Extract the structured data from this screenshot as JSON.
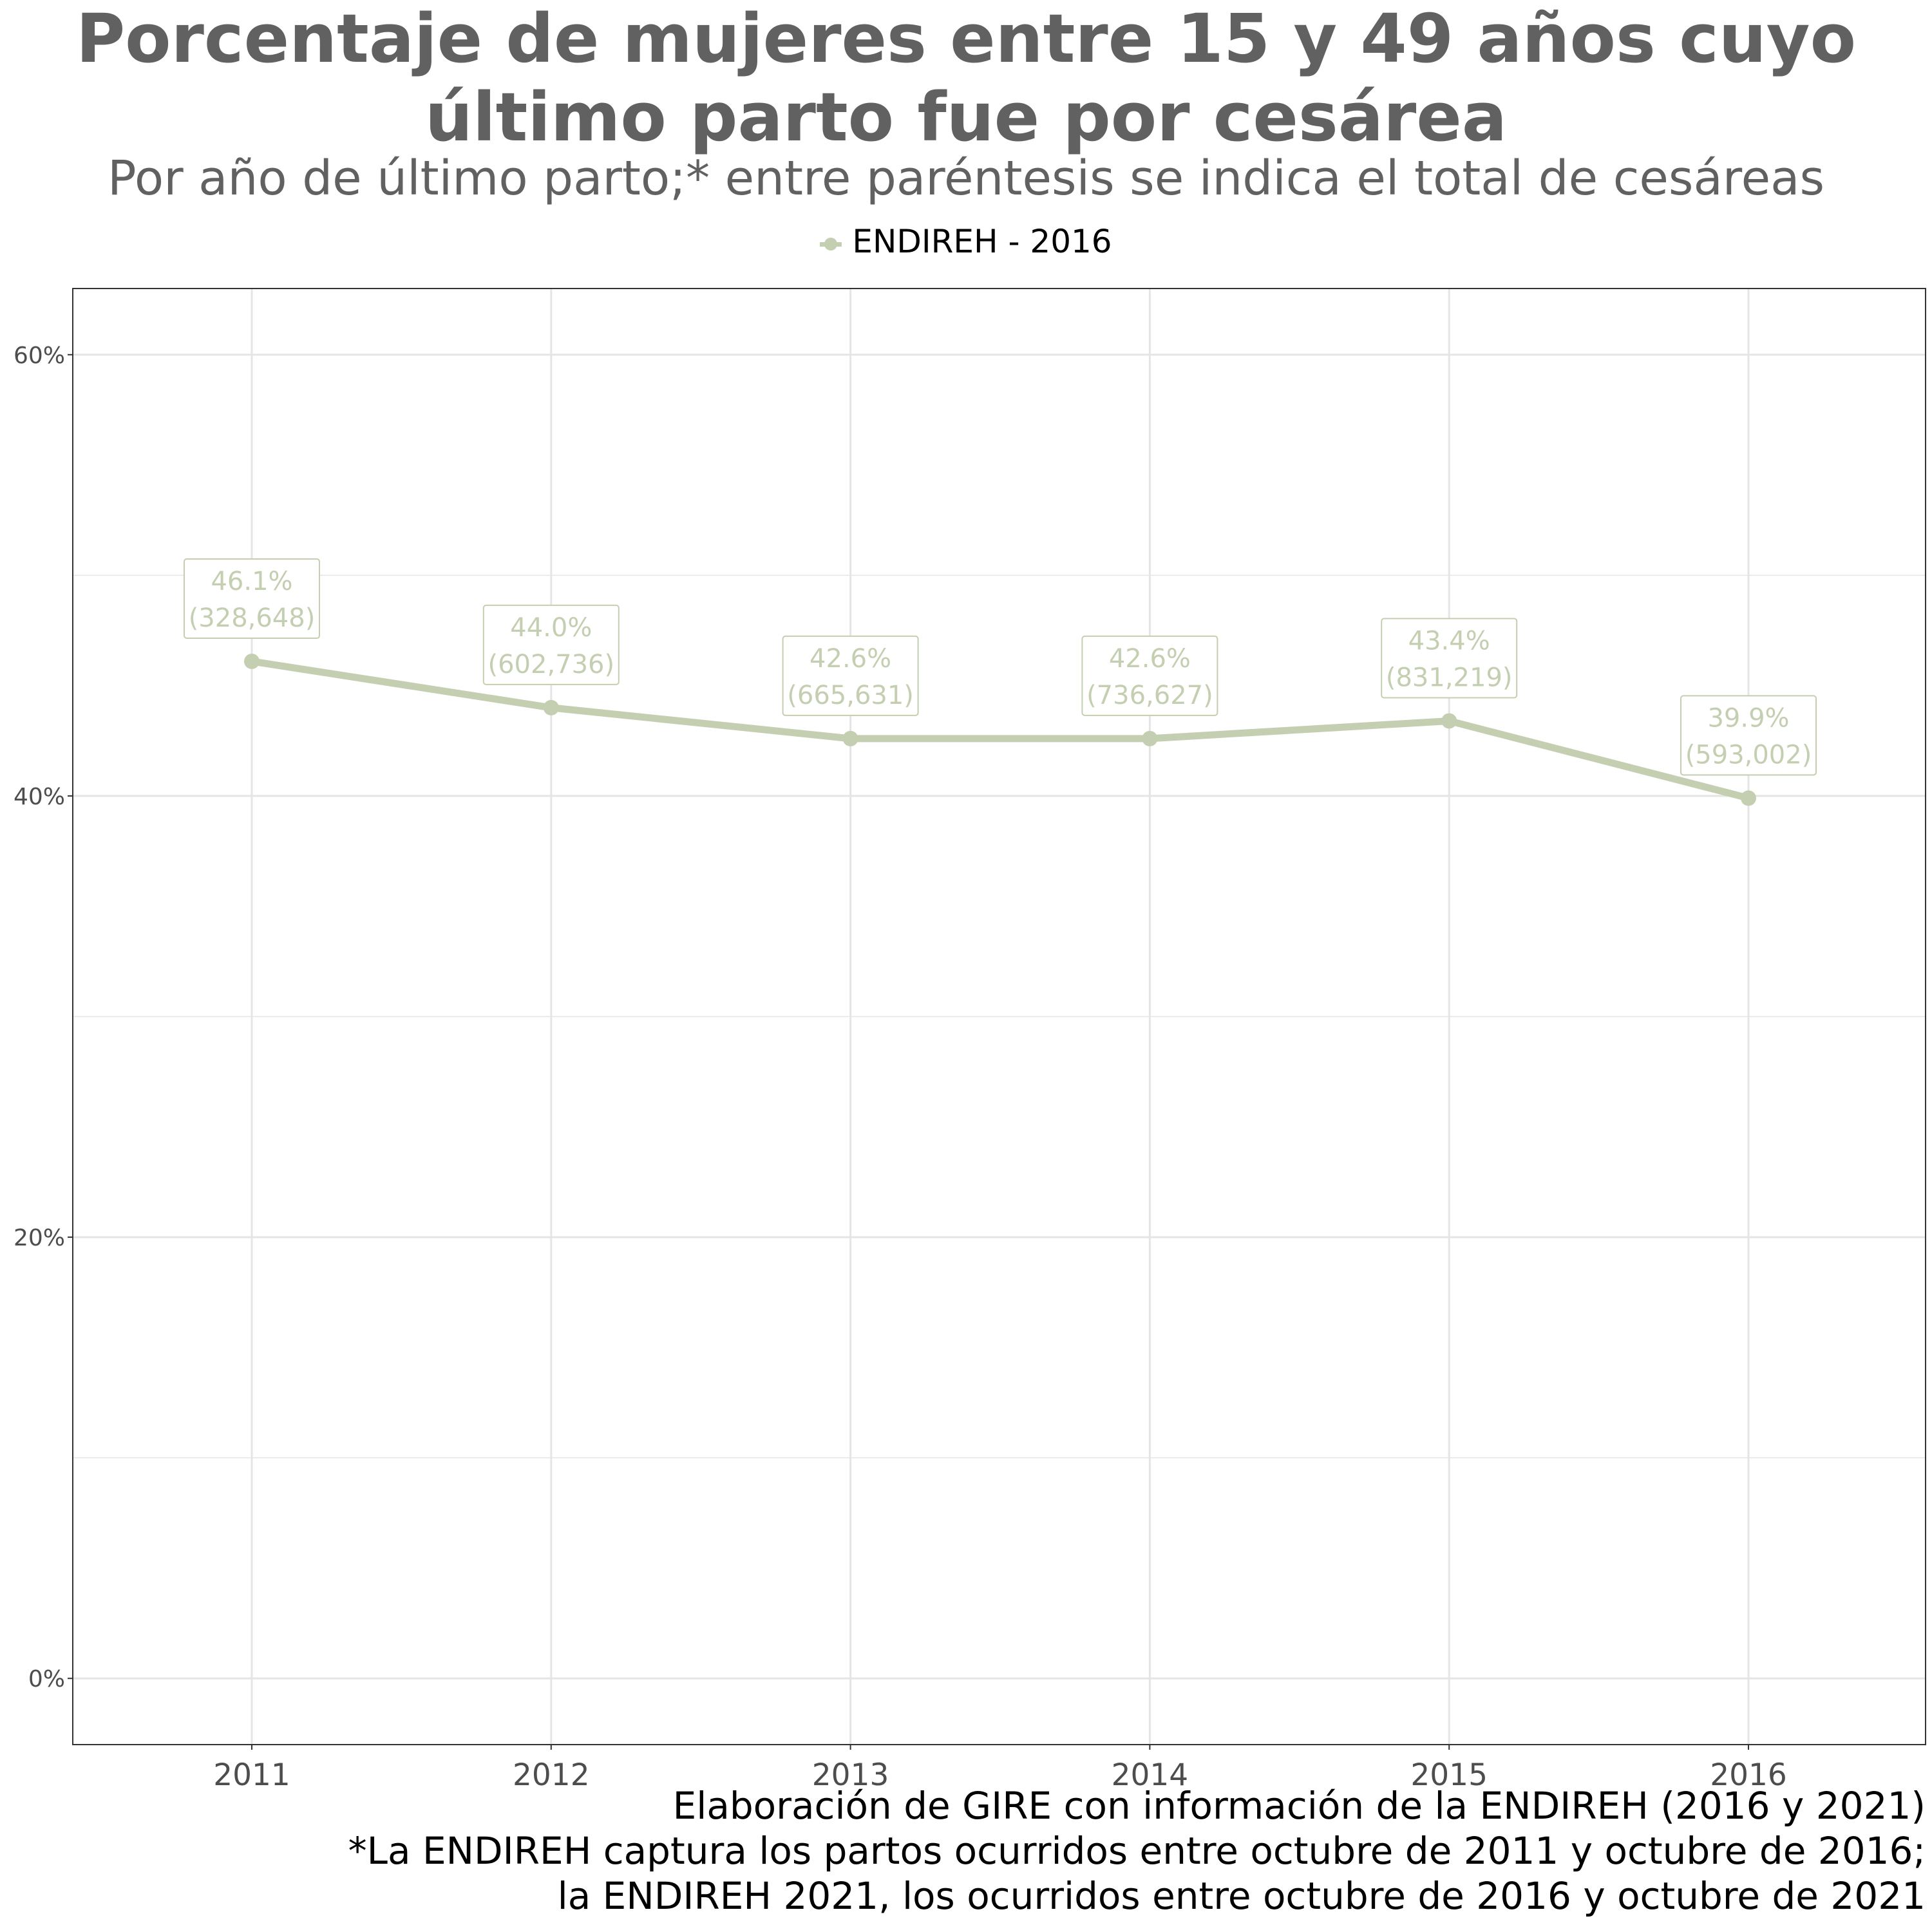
{
  "header": {
    "title_line1": "Porcentaje de mujeres entre 15 y 49 años cuyo",
    "title_line2": "último parto fue por cesárea",
    "subtitle": "Por año de último parto;* entre paréntesis se indica el total de cesáreas"
  },
  "legend": {
    "label": "ENDIREH - 2016"
  },
  "caption": {
    "line1": "Elaboración de GIRE con información de la ENDIREH (2016 y 2021)",
    "line2": "*La ENDIREH captura los partos ocurridos entre octubre de 2011 y octubre de 2016;",
    "line3": "la ENDIREH 2021, los ocurridos entre octubre de 2016 y octubre de 2021"
  },
  "colors": {
    "series": "#c4cfb1",
    "label_text": "#c4cfb1",
    "title": "#616161",
    "grid": "#e5e5e5",
    "panel_border": "#333333"
  },
  "chart_data": {
    "type": "line",
    "title": "Porcentaje de mujeres entre 15 y 49 años cuyo último parto fue por cesárea",
    "subtitle": "Por año de último parto;* entre paréntesis se indica el total de cesáreas",
    "xlabel": "",
    "ylabel": "",
    "x": [
      "2011",
      "2012",
      "2013",
      "2014",
      "2015",
      "2016"
    ],
    "series": [
      {
        "name": "ENDIREH - 2016",
        "values": [
          46.1,
          44.0,
          42.6,
          42.6,
          43.4,
          39.9
        ],
        "value_labels": [
          "46.1%",
          "44.0%",
          "42.6%",
          "42.6%",
          "43.4%",
          "39.9%"
        ],
        "count_labels": [
          "(328,648)",
          "(602,736)",
          "(665,631)",
          "(736,627)",
          "(831,219)",
          "(593,002)"
        ]
      }
    ],
    "yticks": [
      0,
      20,
      40,
      60
    ],
    "ytick_labels": [
      "0%",
      "20%",
      "40%",
      "60%"
    ],
    "ylim": [
      -3,
      63
    ],
    "grid": true,
    "legend_position": "top"
  }
}
